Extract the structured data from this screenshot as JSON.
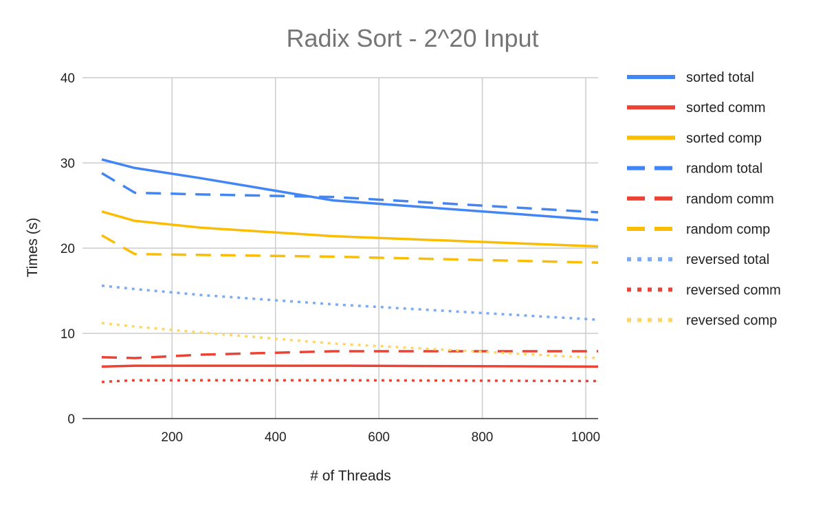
{
  "chart_data": {
    "type": "line",
    "title": "Radix Sort - 2^20 Input",
    "xlabel": "# of Threads",
    "ylabel": "Times (s)",
    "x": [
      64,
      128,
      256,
      512,
      1024
    ],
    "xlim": [
      64,
      1024
    ],
    "ylim": [
      0,
      40
    ],
    "xticks": [
      200,
      400,
      600,
      800,
      1000
    ],
    "yticks": [
      0,
      10,
      20,
      30,
      40
    ],
    "grid": true,
    "legend_position": "right",
    "series": [
      {
        "name": "sorted total",
        "color": "#4285f4",
        "dash": "solid",
        "values": [
          30.4,
          29.4,
          28.2,
          25.6,
          23.3
        ]
      },
      {
        "name": "sorted comm",
        "color": "#ea4335",
        "dash": "solid",
        "values": [
          6.1,
          6.2,
          6.2,
          6.2,
          6.1
        ]
      },
      {
        "name": "sorted comp",
        "color": "#fbbc04",
        "dash": "solid",
        "values": [
          24.3,
          23.2,
          22.4,
          21.4,
          20.2
        ]
      },
      {
        "name": "random total",
        "color": "#4285f4",
        "dash": "dashed",
        "values": [
          28.8,
          26.5,
          26.3,
          26.0,
          24.2
        ]
      },
      {
        "name": "random comm",
        "color": "#ea4335",
        "dash": "dashed",
        "values": [
          7.2,
          7.1,
          7.5,
          7.9,
          7.9
        ]
      },
      {
        "name": "random comp",
        "color": "#fbbc04",
        "dash": "dashed",
        "values": [
          21.5,
          19.3,
          19.2,
          19.0,
          18.3
        ]
      },
      {
        "name": "reversed total",
        "color": "#7baaf7",
        "dash": "dotted",
        "values": [
          15.6,
          15.2,
          14.5,
          13.4,
          11.6
        ]
      },
      {
        "name": "reversed comm",
        "color": "#ea4335",
        "dash": "dotted",
        "values": [
          4.3,
          4.5,
          4.5,
          4.5,
          4.4
        ]
      },
      {
        "name": "reversed comp",
        "color": "#fdd663",
        "dash": "dotted",
        "values": [
          11.2,
          10.8,
          10.1,
          8.8,
          7.1
        ]
      }
    ]
  }
}
